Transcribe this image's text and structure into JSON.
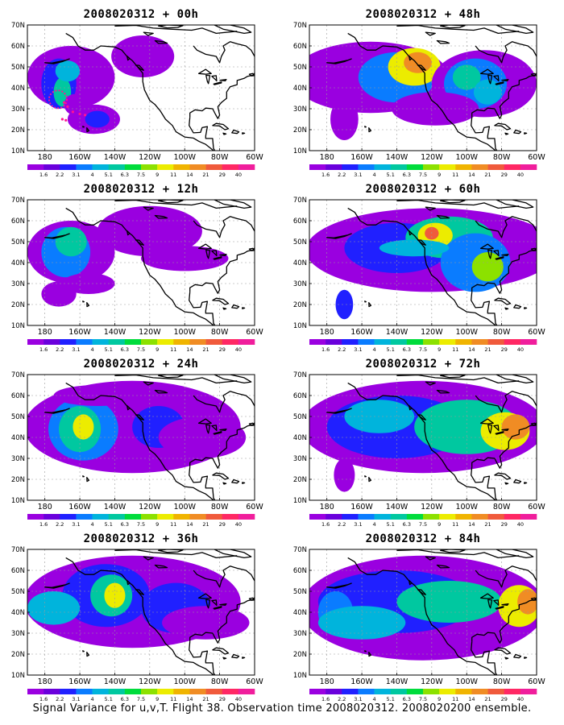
{
  "panels": [
    {
      "title": "2008020312 + 00h",
      "level": 0
    },
    {
      "title": "2008020312 + 48h",
      "level": 4
    },
    {
      "title": "2008020312 + 12h",
      "level": 1
    },
    {
      "title": "2008020312 + 60h",
      "level": 5
    },
    {
      "title": "2008020312 + 24h",
      "level": 2
    },
    {
      "title": "2008020312 + 72h",
      "level": 6
    },
    {
      "title": "2008020312 + 36h",
      "level": 3
    },
    {
      "title": "2008020312 + 84h",
      "level": 7
    }
  ],
  "lat_labels": [
    "70N",
    "60N",
    "50N",
    "40N",
    "30N",
    "20N",
    "10N"
  ],
  "lon_labels": [
    "180",
    "160W",
    "140W",
    "120W",
    "100W",
    "80W",
    "60W"
  ],
  "colorbar": {
    "labels": [
      "1.6",
      "2.2",
      "3.1",
      "4",
      "5.1",
      "6.3",
      "7.5",
      "9",
      "11",
      "14",
      "21",
      "29",
      "40"
    ],
    "colors": [
      "#9a00e0",
      "#6a00dc",
      "#2020ff",
      "#0a7cff",
      "#00b4dc",
      "#00c8a0",
      "#00dc3c",
      "#8ce100",
      "#ecec00",
      "#f0b400",
      "#f08c24",
      "#f05a3c",
      "#ff2864",
      "#f01e9c"
    ]
  },
  "caption": "Signal Variance for u,v,T. Flight 38. Observation time 2008020312. 2008020200 ensemble."
}
